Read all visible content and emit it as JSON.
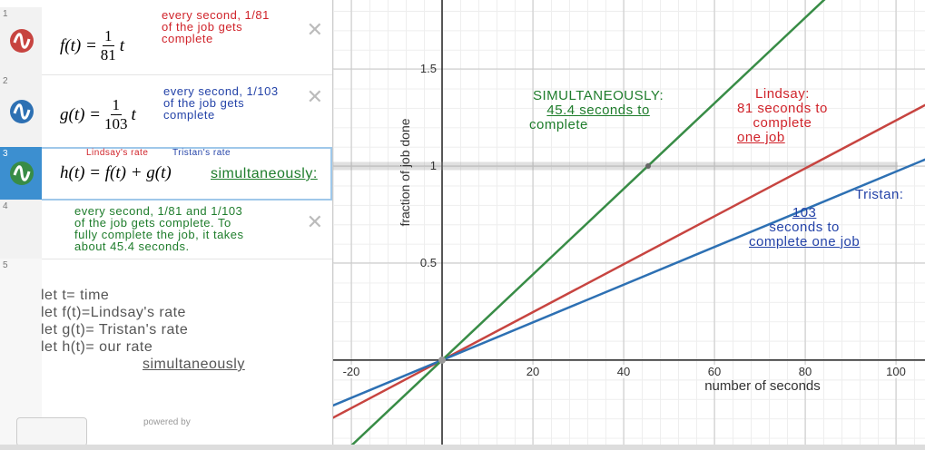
{
  "expressions": [
    {
      "number": "1",
      "lhs": "f(t) =",
      "numerator": "1",
      "denominator": "81",
      "var": "t"
    },
    {
      "number": "2",
      "lhs": "g(t) =",
      "numerator": "1",
      "denominator": "103",
      "var": "t"
    },
    {
      "number": "3",
      "formula": "h(t) = f(t) + g(t)"
    },
    {
      "number": "4"
    },
    {
      "number": "5"
    }
  ],
  "notes": {
    "f_rate": [
      "every second, 1/81",
      "of the job gets",
      "complete"
    ],
    "g_rate": [
      "every second, 1/103",
      "of the job gets",
      "complete"
    ],
    "lindsay_rate": "Lindsay's rate",
    "tristan_rate": "Tristan's rate",
    "simultaneously": "simultaneously:",
    "h_rate": [
      "every second, 1/81 and 1/103",
      "of the job gets complete. To",
      "fully complete the job, it takes",
      "about 45.4 seconds."
    ],
    "lets": [
      "let t= time",
      "let f(t)=Lindsay's rate",
      "let g(t)= Tristan's rate",
      "let h(t)= our rate",
      "simultaneously"
    ]
  },
  "powered_by": "powered by",
  "chart_data": {
    "type": "line",
    "x_label": "number of seconds",
    "y_label": "fraction of job done",
    "xlim": [
      -24,
      106.4
    ],
    "ylim": [
      -0.435,
      1.855
    ],
    "xticks": [
      -20,
      20,
      40,
      60,
      80,
      100
    ],
    "yticks": [
      0.5,
      1,
      1.5
    ],
    "grid": true,
    "series": [
      {
        "name": "f(t)",
        "color": "#c74440",
        "x": [
          -25,
          0,
          110
        ],
        "values": [
          -0.309,
          0,
          1.358
        ]
      },
      {
        "name": "g(t)",
        "color": "#2d70b3",
        "x": [
          -25,
          0,
          110
        ],
        "values": [
          -0.243,
          0,
          1.068
        ]
      },
      {
        "name": "h(t)",
        "color": "#388c46",
        "x": [
          -25,
          0,
          85
        ],
        "values": [
          -0.551,
          0,
          1.874
        ]
      }
    ],
    "intersection": {
      "x": 45.4,
      "y": 1
    },
    "annotations": {
      "simultaneous": [
        "SIMULTANEOUSLY:",
        "45.4 seconds to",
        "complete"
      ],
      "lindsay": [
        "Lindsay:",
        "81 seconds to",
        "complete",
        "one job"
      ],
      "tristan": [
        "Tristan:",
        "103",
        "seconds to",
        "complete one job"
      ]
    }
  }
}
